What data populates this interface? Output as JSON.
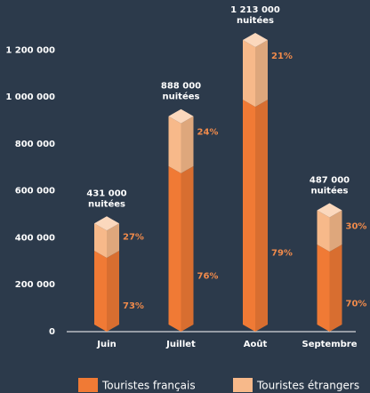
{
  "chart_data": {
    "type": "bar",
    "categories": [
      "Juin",
      "Juillet",
      "Août",
      "Septembre"
    ],
    "totals": [
      431000,
      888000,
      1213000,
      487000
    ],
    "total_labels": [
      "431 000",
      "888 000",
      "1 213 000",
      "487 000"
    ],
    "total_unit": "nuitées",
    "series": [
      {
        "name": "Touristes français",
        "color": "#f07a35",
        "values": [
          73,
          76,
          79,
          70
        ],
        "value_labels": [
          "73%",
          "76%",
          "79%",
          "70%"
        ]
      },
      {
        "name": "Touristes étrangers",
        "color": "#f7b98a",
        "values": [
          27,
          24,
          21,
          30
        ],
        "value_labels": [
          "27%",
          "24%",
          "21%",
          "30%"
        ]
      }
    ],
    "ylim": [
      0,
      1300000
    ],
    "yticks": [
      0,
      {
        "value": 200000,
        "label": "200 000"
      },
      {
        "value": 400000,
        "label": "400 000"
      },
      {
        "value": 600000,
        "label": "600 000"
      },
      {
        "value": 800000,
        "label": "800 000"
      },
      {
        "value": 1000000,
        "label": "1 000 000"
      },
      {
        "value": 1200000,
        "label": "1 200 000"
      }
    ],
    "grid": false
  }
}
